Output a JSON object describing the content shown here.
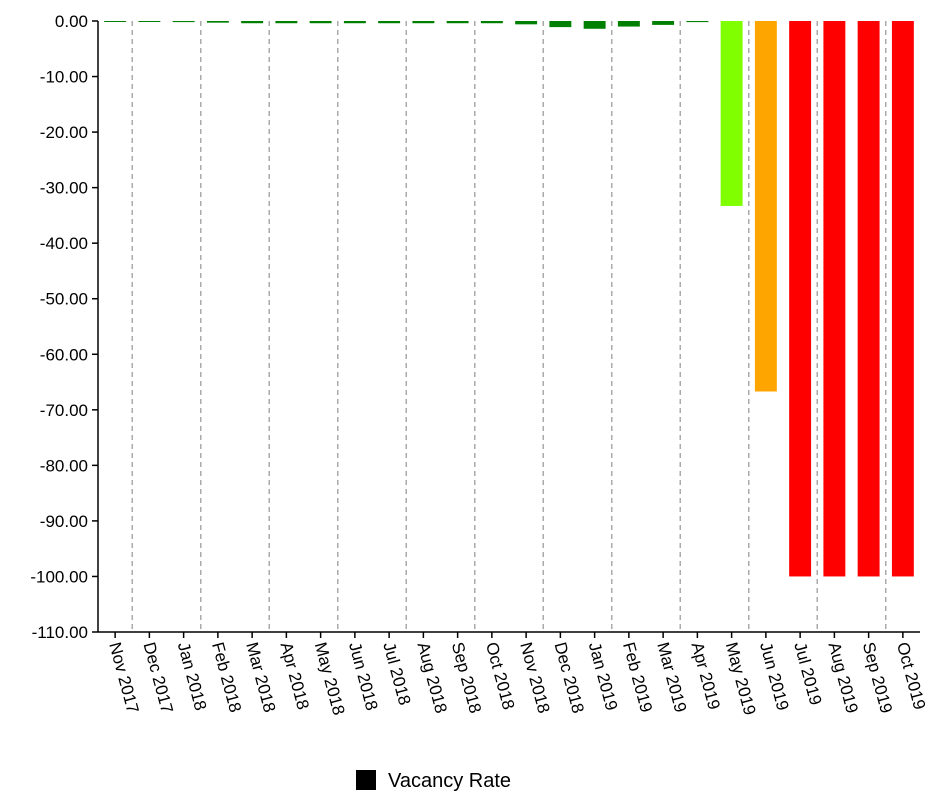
{
  "chart_data": {
    "type": "bar",
    "categories": [
      "Nov 2017",
      "Dec 2017",
      "Jan 2018",
      "Feb 2018",
      "Mar 2018",
      "Apr 2018",
      "May 2018",
      "Jun 2018",
      "Jul 2018",
      "Aug 2018",
      "Sep 2018",
      "Oct 2018",
      "Nov 2018",
      "Dec 2018",
      "Jan 2019",
      "Feb 2019",
      "Mar 2019",
      "Apr 2019",
      "May 2019",
      "Jun 2019",
      "Jul 2019",
      "Aug 2019",
      "Sep 2019",
      "Oct 2019"
    ],
    "series": [
      {
        "name": "Vacancy Rate",
        "color": "#000000",
        "colors": [
          "#008000",
          "#008000",
          "#008000",
          "#008000",
          "#008000",
          "#008000",
          "#008000",
          "#008000",
          "#008000",
          "#008000",
          "#008000",
          "#008000",
          "#008000",
          "#008000",
          "#008000",
          "#008000",
          "#008000",
          "#008000",
          "#7fff00",
          "#ffa500",
          "#ff0000",
          "#ff0000",
          "#ff0000",
          "#ff0000"
        ],
        "values": [
          -0.1,
          -0.1,
          -0.2,
          -0.3,
          -0.4,
          -0.4,
          -0.4,
          -0.4,
          -0.4,
          -0.4,
          -0.4,
          -0.4,
          -0.6,
          -1.1,
          -1.4,
          -1.0,
          -0.7,
          -0.2,
          -33.3,
          -66.7,
          -100,
          -100,
          -100,
          -100
        ]
      }
    ],
    "ylim": [
      -110,
      0
    ],
    "yticks": [
      {
        "value": 0,
        "label": "0.00"
      },
      {
        "value": -10,
        "label": "-10.00"
      },
      {
        "value": -20,
        "label": "-20.00"
      },
      {
        "value": -30,
        "label": "-30.00"
      },
      {
        "value": -40,
        "label": "-40.00"
      },
      {
        "value": -50,
        "label": "-50.00"
      },
      {
        "value": -60,
        "label": "-60.00"
      },
      {
        "value": -70,
        "label": "-70.00"
      },
      {
        "value": -80,
        "label": "-80.00"
      },
      {
        "value": -90,
        "label": "-90.00"
      },
      {
        "value": -100,
        "label": "-100.00"
      },
      {
        "value": -110,
        "label": "-110.00"
      }
    ],
    "grid": true
  }
}
